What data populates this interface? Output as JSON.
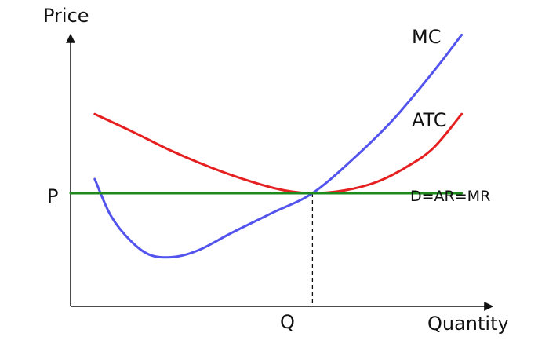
{
  "chart_data": {
    "type": "line",
    "title": "",
    "xlabel": "Quantity",
    "ylabel": "Price",
    "xlim": [
      0,
      10
    ],
    "ylim": [
      0,
      10
    ],
    "grid": false,
    "legend": "none",
    "x_tick_labels": [
      "Q"
    ],
    "y_tick_labels": [
      "P"
    ],
    "equilibrium": {
      "x": 6.0,
      "y": 4.0,
      "x_label": "Q",
      "y_label": "P"
    },
    "series": [
      {
        "name": "MC",
        "color": "#5353ee",
        "points": [
          [
            0.6,
            4.5
          ],
          [
            1.0,
            3.2
          ],
          [
            1.5,
            2.3
          ],
          [
            2.0,
            1.8
          ],
          [
            2.6,
            1.75
          ],
          [
            3.2,
            2.0
          ],
          [
            4.0,
            2.6
          ],
          [
            5.0,
            3.3
          ],
          [
            6.0,
            4.0
          ],
          [
            7.0,
            5.2
          ],
          [
            8.0,
            6.6
          ],
          [
            9.0,
            8.3
          ],
          [
            9.7,
            9.6
          ]
        ]
      },
      {
        "name": "ATC",
        "color": "#e62020",
        "points": [
          [
            0.6,
            6.8
          ],
          [
            1.5,
            6.2
          ],
          [
            2.5,
            5.5
          ],
          [
            3.5,
            4.9
          ],
          [
            4.5,
            4.4
          ],
          [
            5.3,
            4.1
          ],
          [
            6.0,
            4.0
          ],
          [
            6.8,
            4.1
          ],
          [
            7.6,
            4.4
          ],
          [
            8.3,
            4.9
          ],
          [
            9.0,
            5.6
          ],
          [
            9.7,
            6.8
          ]
        ]
      },
      {
        "name": "D=AR=MR",
        "color": "#1e8a1e",
        "points": [
          [
            0,
            4.0
          ],
          [
            9.7,
            4.0
          ]
        ]
      }
    ]
  }
}
